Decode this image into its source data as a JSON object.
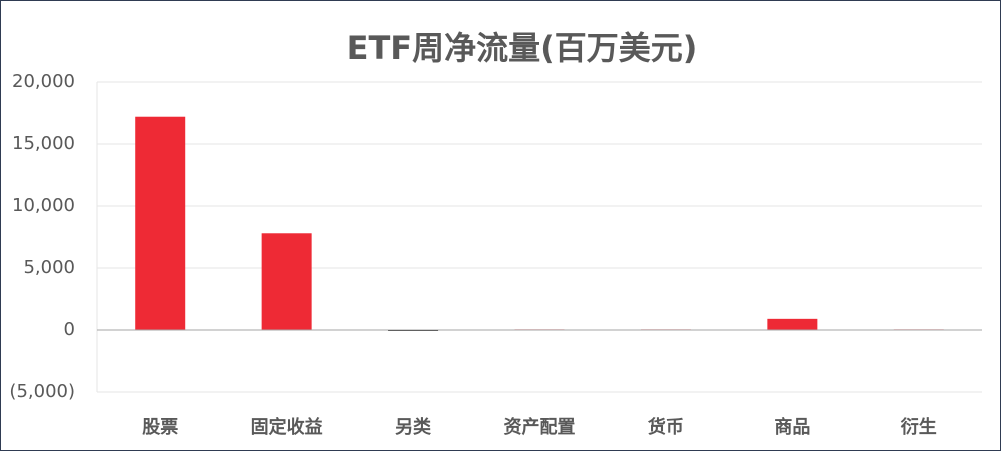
{
  "chart_data": {
    "type": "bar",
    "title": "ETF周净流量(百万美元)",
    "categories": [
      "股票",
      "固定收益",
      "另类",
      "资产配置",
      "货币",
      "商品",
      "衍生"
    ],
    "values": [
      17200,
      7800,
      -80,
      50,
      50,
      900,
      50
    ],
    "color": "#ee2a35",
    "negative_color": "#1a1a1a",
    "ylim": [
      -5000,
      20000
    ],
    "yticks": [
      {
        "value": -5000,
        "label": "(5,000)"
      },
      0,
      {
        "value": 5000,
        "label": "5,000"
      },
      {
        "value": 10000,
        "label": "10,000"
      },
      {
        "value": 15000,
        "label": "15,000"
      },
      {
        "value": 20000,
        "label": "20,000"
      }
    ],
    "negative_tick_color": "#c00000",
    "grid": true
  }
}
